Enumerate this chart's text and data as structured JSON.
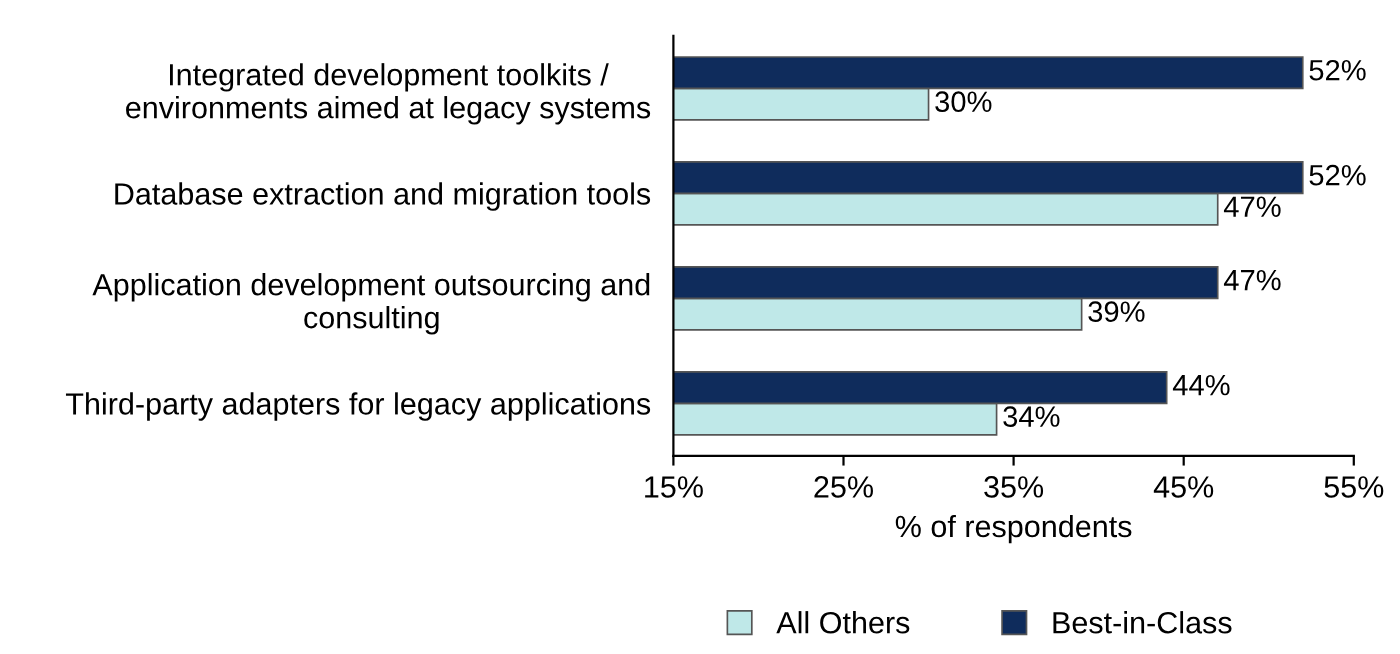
{
  "chart_data": {
    "type": "bar",
    "orientation": "horizontal",
    "categories": [
      "Integrated development toolkits /\nenvironments aimed at legacy systems",
      "Database extraction and migration tools",
      "Application development outsourcing and\nconsulting",
      "Third-party adapters for legacy applications"
    ],
    "series": [
      {
        "name": "All Others",
        "color": "#bfe8e8",
        "values": [
          30,
          47,
          39,
          34
        ],
        "value_labels": [
          "30%",
          "47%",
          "39%",
          "34%"
        ]
      },
      {
        "name": "Best-in-Class",
        "color": "#0f2c5c",
        "values": [
          52,
          52,
          47,
          44
        ],
        "value_labels": [
          "52%",
          "52%",
          "47%",
          "44%"
        ]
      }
    ],
    "xlim": [
      15,
      55
    ],
    "xticks": [
      {
        "value": 15,
        "label": "15%"
      },
      {
        "value": 25,
        "label": "25%"
      },
      {
        "value": 35,
        "label": "35%"
      },
      {
        "value": 45,
        "label": "45%"
      },
      {
        "value": 55,
        "label": "55%"
      }
    ],
    "xlabel": "% of respondents",
    "grid": false,
    "legend": "bottom"
  }
}
